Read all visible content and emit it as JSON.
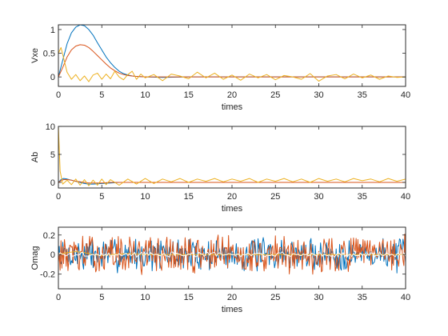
{
  "chart_data": [
    {
      "type": "line",
      "ylabel": "Vxe",
      "xlabel": "times",
      "xlim": [
        0,
        40
      ],
      "ylim": [
        -0.2,
        1.1
      ],
      "xticks": [
        0,
        5,
        10,
        15,
        20,
        25,
        30,
        35,
        40
      ],
      "yticks": [
        0,
        0.5,
        1
      ],
      "xtick_labels": [
        "0",
        "5",
        "10",
        "15",
        "20",
        "25",
        "30",
        "35",
        "40"
      ],
      "ytick_labels": [
        "0",
        "0.5",
        "1"
      ],
      "grid": false,
      "series": [
        {
          "color": "#0072BD",
          "x": [
            0,
            0.5,
            1,
            1.5,
            2,
            2.5,
            3,
            3.5,
            4,
            4.5,
            5,
            5.5,
            6,
            6.5,
            7,
            7.5,
            8,
            8.5,
            9,
            10,
            12,
            15,
            20,
            25,
            30,
            35,
            40
          ],
          "y": [
            0,
            0.35,
            0.7,
            0.93,
            1.05,
            1.1,
            1.08,
            1.0,
            0.88,
            0.72,
            0.57,
            0.42,
            0.3,
            0.2,
            0.12,
            0.07,
            0.04,
            0.02,
            0.01,
            0,
            -0.01,
            0,
            0,
            0,
            0,
            0,
            0
          ]
        },
        {
          "color": "#D95319",
          "x": [
            0,
            0.5,
            1,
            1.5,
            2,
            2.5,
            3,
            3.5,
            4,
            4.5,
            5,
            5.5,
            6,
            6.5,
            7,
            7.5,
            8,
            8.5,
            9,
            10,
            12,
            15,
            20,
            25,
            30,
            35,
            40
          ],
          "y": [
            0,
            0.2,
            0.42,
            0.57,
            0.65,
            0.68,
            0.67,
            0.62,
            0.54,
            0.45,
            0.36,
            0.27,
            0.19,
            0.13,
            0.08,
            0.05,
            0.03,
            0.02,
            0.01,
            0,
            0,
            0,
            0,
            0,
            0,
            0,
            0
          ]
        },
        {
          "color": "#EDB120",
          "x": [
            0,
            0.3,
            0.6,
            1,
            1.5,
            2,
            2.5,
            3,
            3.5,
            4,
            4.5,
            5,
            5.5,
            6,
            6.5,
            7,
            7.5,
            8,
            8.5,
            9,
            9.5,
            10,
            11,
            12,
            13,
            14,
            15,
            16,
            17,
            18,
            19,
            20,
            21,
            22,
            23,
            24,
            25,
            26,
            27,
            28,
            29,
            30,
            31,
            32,
            33,
            34,
            35,
            36,
            37,
            38,
            39,
            40
          ],
          "y": [
            0.5,
            0.62,
            0.4,
            0.1,
            -0.05,
            0.05,
            -0.08,
            0.02,
            -0.1,
            0.04,
            0.08,
            -0.05,
            0.06,
            -0.04,
            0.12,
            0.0,
            -0.06,
            0.05,
            0.12,
            -0.05,
            0.06,
            -0.02,
            0.05,
            -0.08,
            0.06,
            0.02,
            -0.04,
            0.1,
            -0.02,
            0.08,
            -0.05,
            0.04,
            -0.07,
            0.06,
            -0.02,
            0.05,
            -0.06,
            0.03,
            0.0,
            -0.05,
            0.07,
            -0.09,
            0.02,
            0.05,
            -0.04,
            0.06,
            -0.02,
            0.04,
            -0.05,
            0.02,
            -0.01,
            0.0
          ]
        }
      ]
    },
    {
      "type": "line",
      "ylabel": "Ab",
      "xlabel": "times",
      "xlim": [
        0,
        40
      ],
      "ylim": [
        -1,
        10
      ],
      "xticks": [
        0,
        5,
        10,
        15,
        20,
        25,
        30,
        35,
        40
      ],
      "yticks": [
        0,
        5,
        10
      ],
      "xtick_labels": [
        "0",
        "5",
        "10",
        "15",
        "20",
        "25",
        "30",
        "35",
        "40"
      ],
      "ytick_labels": [
        "0",
        "5",
        "10"
      ],
      "grid": false,
      "series": [
        {
          "color": "#0072BD",
          "x": [
            0,
            0.3,
            0.6,
            1,
            1.5,
            2,
            2.5,
            3,
            3.5,
            4,
            5,
            6,
            7,
            8,
            10,
            15,
            20,
            25,
            30,
            35,
            40
          ],
          "y": [
            0,
            0.5,
            0.7,
            0.6,
            0.4,
            0.2,
            0.0,
            -0.2,
            -0.3,
            -0.3,
            -0.2,
            -0.1,
            0,
            0,
            0,
            0,
            0,
            0,
            0,
            0,
            0
          ]
        },
        {
          "color": "#D95319",
          "x": [
            0,
            0.3,
            0.6,
            1,
            1.5,
            2,
            2.5,
            3,
            3.5,
            4,
            5,
            6,
            7,
            8,
            10,
            15,
            20,
            25,
            30,
            35,
            40
          ],
          "y": [
            0,
            0.3,
            0.5,
            0.5,
            0.4,
            0.2,
            0.1,
            0.0,
            -0.1,
            -0.1,
            -0.1,
            0,
            0,
            0,
            0,
            0,
            0,
            0,
            0,
            0,
            0
          ]
        },
        {
          "color": "#EDB120",
          "x": [
            0,
            0.1,
            0.2,
            0.5,
            1,
            1.5,
            2,
            2.5,
            3,
            3.5,
            4,
            4.5,
            5,
            5.5,
            6,
            7,
            8,
            9,
            10,
            11,
            12,
            13,
            14,
            15,
            16,
            17,
            18,
            19,
            20,
            21,
            22,
            23,
            24,
            25,
            26,
            27,
            28,
            29,
            30,
            31,
            32,
            33,
            34,
            35,
            36,
            37,
            38,
            39,
            40
          ],
          "y": [
            10,
            6,
            2,
            -0.3,
            0.4,
            -0.4,
            0.6,
            -0.5,
            0.5,
            -0.6,
            0.4,
            -0.5,
            0.6,
            -0.4,
            0.5,
            -0.5,
            0.6,
            -0.3,
            0.7,
            -0.2,
            0.6,
            0.1,
            0.7,
            0.0,
            0.6,
            0.2,
            0.7,
            0.1,
            0.6,
            0.2,
            0.7,
            0.0,
            0.6,
            0.2,
            0.7,
            0.1,
            0.6,
            0.0,
            0.7,
            0.2,
            0.6,
            0.1,
            0.7,
            0.3,
            0.6,
            0.1,
            0.7,
            0.2,
            0.6
          ]
        }
      ]
    },
    {
      "type": "line",
      "ylabel": "Omag",
      "xlabel": "times",
      "xlim": [
        0,
        40
      ],
      "ylim": [
        -0.35,
        0.28
      ],
      "xticks": [
        0,
        5,
        10,
        15,
        20,
        25,
        30,
        35,
        40
      ],
      "yticks": [
        -0.2,
        0,
        0.2
      ],
      "xtick_labels": [
        "0",
        "5",
        "10",
        "15",
        "20",
        "25",
        "30",
        "35",
        "40"
      ],
      "ytick_labels": [
        "-0.2",
        "0",
        "0.2"
      ],
      "grid": false,
      "series": [
        {
          "color": "#0072BD",
          "kind": "noise",
          "amplitude": 0.13,
          "points": 400,
          "seed": 7
        },
        {
          "color": "#D95319",
          "kind": "noise",
          "amplitude": 0.15,
          "points": 400,
          "seed": 13
        },
        {
          "color": "#EDB120",
          "x": [
            0,
            1,
            2,
            3,
            4,
            5,
            6,
            8,
            10,
            15,
            20,
            25,
            30,
            35,
            40
          ],
          "y": [
            0,
            0.02,
            0.03,
            0.02,
            0.0,
            -0.01,
            0.0,
            0.01,
            0.0,
            0.0,
            0.0,
            0.0,
            0.0,
            0.0,
            0.0
          ]
        },
        {
          "color": "#FFFFFF",
          "kind": "noise",
          "amplitude": 0.02,
          "points": 200,
          "seed": 3
        }
      ]
    }
  ]
}
